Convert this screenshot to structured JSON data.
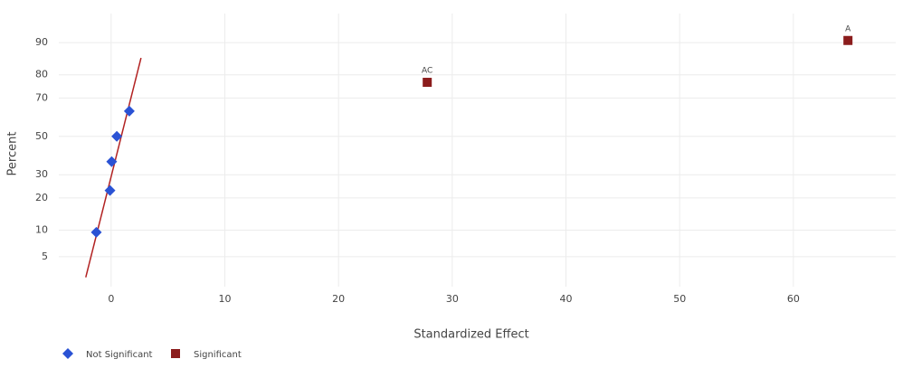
{
  "chart_data": {
    "type": "normal-probability",
    "xlabel": "Standardized Effect",
    "ylabel": "Percent",
    "xlim": [
      -4.6,
      69
    ],
    "xticks": [
      0,
      10,
      20,
      30,
      40,
      50,
      60
    ],
    "ylim": [
      2,
      94
    ],
    "yticks": [
      5,
      10,
      20,
      30,
      50,
      70,
      80,
      90
    ],
    "grid": true,
    "legend": "bottom-left",
    "series": [
      {
        "name": "Not Significant",
        "color": "#2a52d4",
        "marker": "diamond",
        "x": [
          -1.3,
          -0.1,
          0.05,
          0.5,
          1.6
        ],
        "values": [
          9.5,
          23,
          36.5,
          50,
          63.5
        ]
      },
      {
        "name": "Significant",
        "color": "#8b1c1c",
        "marker": "square",
        "x": [
          27.8,
          64.8
        ],
        "values": [
          77,
          90.5
        ],
        "point_labels": [
          "AC",
          "A"
        ]
      }
    ],
    "fit_line": {
      "color": "#b22222",
      "x": [
        -2.23,
        2.63
      ],
      "values": [
        2.7,
        85.8
      ]
    }
  }
}
